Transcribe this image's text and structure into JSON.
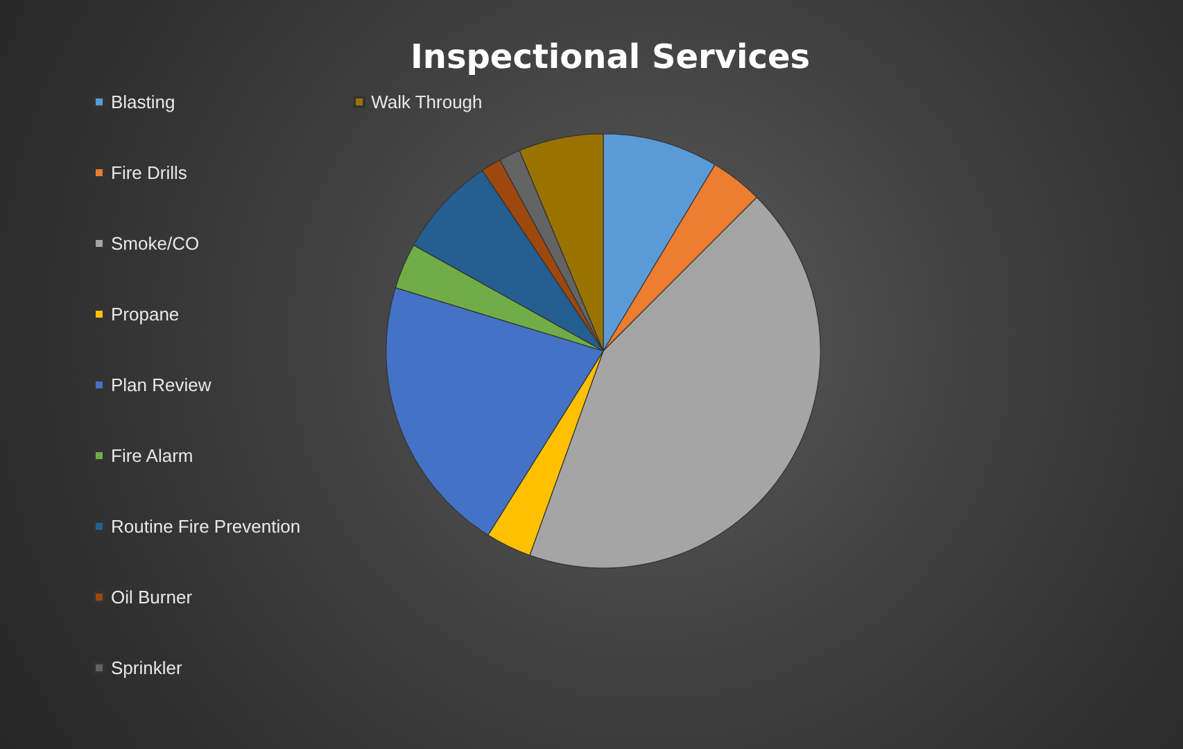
{
  "chart_data": {
    "type": "pie",
    "title": "Inspectional Services",
    "categories": [
      "Blasting",
      "Fire Drills",
      "Smoke/CO",
      "Propane",
      "Plan Review",
      "Fire Alarm",
      "Routine Fire Prevention",
      "Oil Burner",
      "Sprinkler",
      "Walk Through"
    ],
    "values": [
      8.6,
      3.9,
      43.0,
      3.4,
      20.8,
      3.4,
      7.5,
      1.5,
      1.6,
      6.3
    ],
    "colors": [
      "#5b9bd5",
      "#ed7d31",
      "#a5a5a5",
      "#ffc000",
      "#4472c4",
      "#70ad47",
      "#255e91",
      "#9e480e",
      "#636363",
      "#997300"
    ],
    "legend": "left"
  }
}
